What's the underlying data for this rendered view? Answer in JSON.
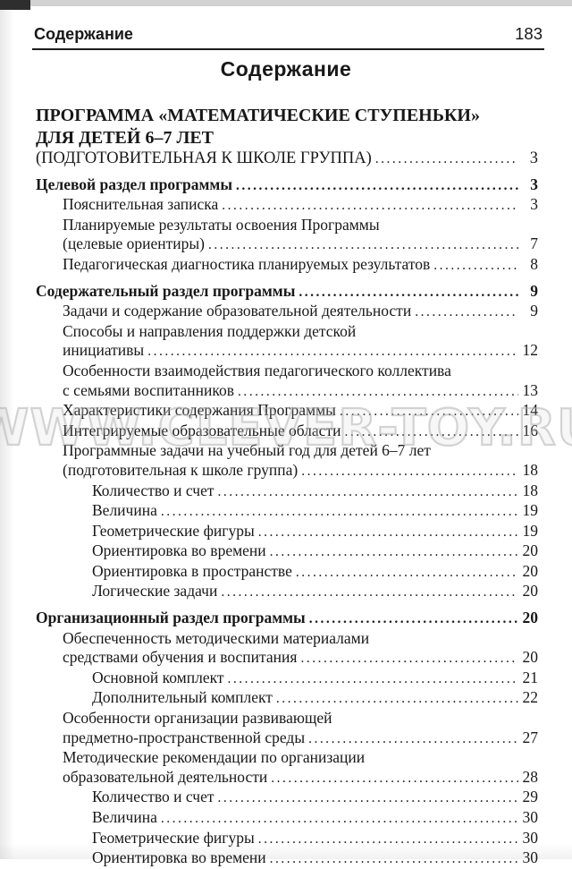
{
  "page": {
    "running_header": "Содержание",
    "running_page_number": "183",
    "title": "Содержание",
    "watermark": "WWW.CLEVER-TOY.RU"
  },
  "toc": {
    "lines": [
      {
        "text": "ПРОГРАММА «МАТЕМАТИЧЕСКИЕ СТУПЕНЬКИ»",
        "page": null,
        "level": 0,
        "bold": true,
        "caps": true,
        "gap": false
      },
      {
        "text": "ДЛЯ ДЕТЕЙ 6–7 ЛЕТ",
        "page": null,
        "level": 0,
        "bold": true,
        "caps": true,
        "gap": false
      },
      {
        "text": "(ПОДГОТОВИТЕЛЬНАЯ К ШКОЛЕ ГРУППА)",
        "page": "3",
        "level": 0,
        "bold": false,
        "caps": true,
        "gap": false
      },
      {
        "text": "Целевой раздел программы",
        "page": "3",
        "level": 0,
        "bold": true,
        "caps": false,
        "gap": true
      },
      {
        "text": "Пояснительная записка",
        "page": "3",
        "level": 1,
        "bold": false,
        "caps": false,
        "gap": false
      },
      {
        "text": "Планируемые результаты освоения Программы",
        "page": null,
        "level": 1,
        "bold": false,
        "caps": false,
        "gap": false
      },
      {
        "text": "(целевые ориентиры)",
        "page": "7",
        "level": 1,
        "bold": false,
        "caps": false,
        "gap": false
      },
      {
        "text": "Педагогическая диагностика планируемых результатов",
        "page": "8",
        "level": 1,
        "bold": false,
        "caps": false,
        "gap": false
      },
      {
        "text": "Содержательный раздел программы",
        "page": "9",
        "level": 0,
        "bold": true,
        "caps": false,
        "gap": true
      },
      {
        "text": "Задачи и содержание образовательной деятельности",
        "page": "9",
        "level": 1,
        "bold": false,
        "caps": false,
        "gap": false
      },
      {
        "text": "Способы и направления поддержки детской",
        "page": null,
        "level": 1,
        "bold": false,
        "caps": false,
        "gap": false
      },
      {
        "text": "инициативы",
        "page": "12",
        "level": 1,
        "bold": false,
        "caps": false,
        "gap": false
      },
      {
        "text": "Особенности взаимодействия педагогического коллектива",
        "page": null,
        "level": 1,
        "bold": false,
        "caps": false,
        "gap": false
      },
      {
        "text": "с семьями воспитанников",
        "page": "13",
        "level": 1,
        "bold": false,
        "caps": false,
        "gap": false
      },
      {
        "text": "Характеристики содержания Программы",
        "page": "14",
        "level": 1,
        "bold": false,
        "caps": false,
        "gap": false
      },
      {
        "text": "Интегрируемые образовательные области",
        "page": "16",
        "level": 1,
        "bold": false,
        "caps": false,
        "gap": false
      },
      {
        "text": "Программные задачи на учебный год для детей 6–7 лет",
        "page": null,
        "level": 1,
        "bold": false,
        "caps": false,
        "gap": false
      },
      {
        "text": "(подготовительная к школе группа)",
        "page": "18",
        "level": 1,
        "bold": false,
        "caps": false,
        "gap": false
      },
      {
        "text": "Количество и счет",
        "page": "18",
        "level": 2,
        "bold": false,
        "caps": false,
        "gap": false
      },
      {
        "text": "Величина",
        "page": "19",
        "level": 2,
        "bold": false,
        "caps": false,
        "gap": false
      },
      {
        "text": "Геометрические фигуры",
        "page": "19",
        "level": 2,
        "bold": false,
        "caps": false,
        "gap": false
      },
      {
        "text": "Ориентировка во времени",
        "page": "20",
        "level": 2,
        "bold": false,
        "caps": false,
        "gap": false
      },
      {
        "text": "Ориентировка в пространстве",
        "page": "20",
        "level": 2,
        "bold": false,
        "caps": false,
        "gap": false
      },
      {
        "text": "Логические задачи",
        "page": "20",
        "level": 2,
        "bold": false,
        "caps": false,
        "gap": false
      },
      {
        "text": "Организационный раздел программы",
        "page": "20",
        "level": 0,
        "bold": true,
        "caps": false,
        "gap": true
      },
      {
        "text": "Обеспеченность методическими материалами",
        "page": null,
        "level": 1,
        "bold": false,
        "caps": false,
        "gap": false
      },
      {
        "text": "средствами обучения и воспитания",
        "page": "20",
        "level": 1,
        "bold": false,
        "caps": false,
        "gap": false
      },
      {
        "text": "Основной комплект",
        "page": "21",
        "level": 2,
        "bold": false,
        "caps": false,
        "gap": false
      },
      {
        "text": "Дополнительный комплект",
        "page": "22",
        "level": 2,
        "bold": false,
        "caps": false,
        "gap": false
      },
      {
        "text": "Особенности организации развивающей",
        "page": null,
        "level": 1,
        "bold": false,
        "caps": false,
        "gap": false
      },
      {
        "text": "предметно-пространственной среды",
        "page": "27",
        "level": 1,
        "bold": false,
        "caps": false,
        "gap": false
      },
      {
        "text": "Методические рекомендации по организации",
        "page": null,
        "level": 1,
        "bold": false,
        "caps": false,
        "gap": false
      },
      {
        "text": "образовательной деятельности",
        "page": "28",
        "level": 1,
        "bold": false,
        "caps": false,
        "gap": false
      },
      {
        "text": "Количество и счет",
        "page": "29",
        "level": 2,
        "bold": false,
        "caps": false,
        "gap": false
      },
      {
        "text": "Величина",
        "page": "30",
        "level": 2,
        "bold": false,
        "caps": false,
        "gap": false
      },
      {
        "text": "Геометрические фигуры",
        "page": "30",
        "level": 2,
        "bold": false,
        "caps": false,
        "gap": false
      },
      {
        "text": "Ориентировка во времени",
        "page": "30",
        "level": 2,
        "bold": false,
        "caps": false,
        "gap": false
      }
    ]
  }
}
